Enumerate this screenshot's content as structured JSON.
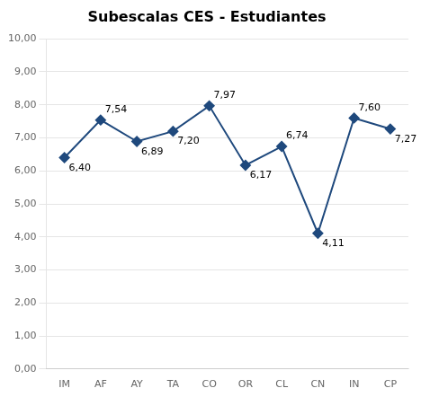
{
  "chart_data": {
    "type": "line",
    "title": "Subescalas CES - Estudiantes",
    "categories": [
      "IM",
      "AF",
      "AY",
      "TA",
      "CO",
      "OR",
      "CL",
      "CN",
      "IN",
      "CP"
    ],
    "values": [
      6.4,
      7.54,
      6.89,
      7.2,
      7.97,
      6.17,
      6.74,
      4.11,
      7.6,
      7.27
    ],
    "value_labels": [
      "6,40",
      "7,54",
      "6,89",
      "7,20",
      "7,97",
      "6,17",
      "6,74",
      "4,11",
      "7,60",
      "7,27"
    ],
    "color": "#1F497D",
    "marker": "diamond",
    "ylim": [
      0,
      10
    ],
    "yticks": [
      {
        "value": 0,
        "label": "0,00"
      },
      {
        "value": 1,
        "label": "1,00"
      },
      {
        "value": 2,
        "label": "2,00"
      },
      {
        "value": 3,
        "label": "3,00"
      },
      {
        "value": 4,
        "label": "4,00"
      },
      {
        "value": 5,
        "label": "5,00"
      },
      {
        "value": 6,
        "label": "6,00"
      },
      {
        "value": 7,
        "label": "7,00"
      },
      {
        "value": 8,
        "label": "8,00"
      },
      {
        "value": 9,
        "label": "9,00"
      },
      {
        "value": 10,
        "label": "10,00"
      }
    ],
    "grid": true,
    "data_labels": true
  }
}
